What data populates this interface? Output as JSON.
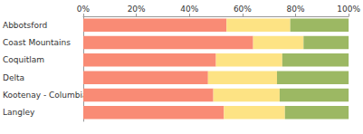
{
  "chart_data": {
    "type": "bar",
    "orientation": "horizontal",
    "stacked": true,
    "grid": false,
    "categories": [
      "Abbotsford",
      "Coast Mountains",
      "Coquitlam",
      "Delta",
      "Kootenay - Columbia",
      "Langley"
    ],
    "series": [
      {
        "color": "#f98b75",
        "values": [
          54,
          64,
          50,
          47,
          49,
          53
        ]
      },
      {
        "color": "#fde384",
        "values": [
          24,
          19,
          25,
          26,
          25,
          23
        ]
      },
      {
        "color": "#9cb863",
        "values": [
          22,
          17,
          25,
          27,
          26,
          24
        ]
      }
    ],
    "xlim": [
      0,
      100
    ],
    "xticks": [
      {
        "value": 0,
        "label": "0%"
      },
      {
        "value": 20,
        "label": "20%"
      },
      {
        "value": 40,
        "label": "40%"
      },
      {
        "value": 60,
        "label": "60%"
      },
      {
        "value": 80,
        "label": "80%"
      },
      {
        "value": 100,
        "label": "100%"
      }
    ]
  }
}
